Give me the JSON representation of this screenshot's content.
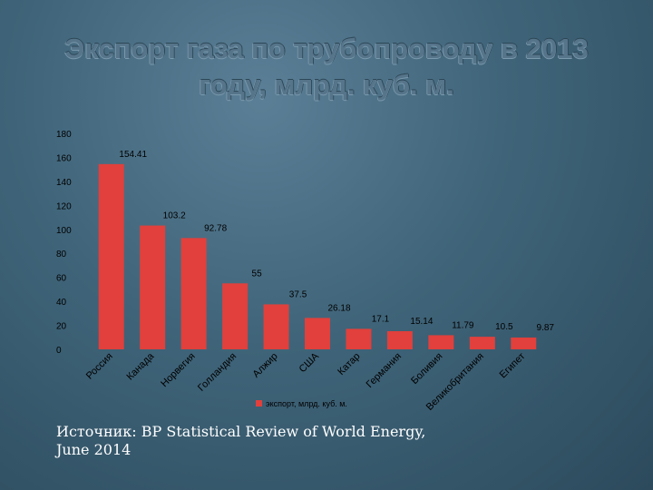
{
  "title_lines": [
    "Экспорт газа по трубопроводу в 2013",
    "году, млрд. куб. м."
  ],
  "source_lines": [
    "Источник: BP Statistical Review of World Energy,",
    "June 2014"
  ],
  "chart_data": {
    "type": "bar",
    "title": "Экспорт газа по трубопроводу в 2013 году, млрд. куб. м.",
    "categories": [
      "Россия",
      "Канада",
      "Норвегия",
      "Голландия",
      "Алжир",
      "США",
      "Катар",
      "Германия",
      "Боливия",
      "Великобритания",
      "Египет"
    ],
    "series": [
      {
        "name": "экспорт, млрд. куб. м.",
        "values": [
          154.41,
          103.2,
          92.78,
          55,
          37.5,
          26.18,
          17.1,
          15.14,
          11.79,
          10.5,
          9.87
        ],
        "labels": [
          "154.41",
          "103.2",
          "92.78",
          "55",
          "37.5",
          "26.18",
          "17.1",
          "15.14",
          "11.79",
          "10.5",
          "9.87"
        ]
      }
    ],
    "ylim": [
      0,
      180
    ],
    "yticks": [
      0,
      20,
      40,
      60,
      80,
      100,
      120,
      140,
      160,
      180
    ],
    "xlabel": "",
    "ylabel": "",
    "legend": "bottom",
    "grid": false,
    "colors": {
      "bar": "#e1403c",
      "text": "#000000"
    }
  }
}
